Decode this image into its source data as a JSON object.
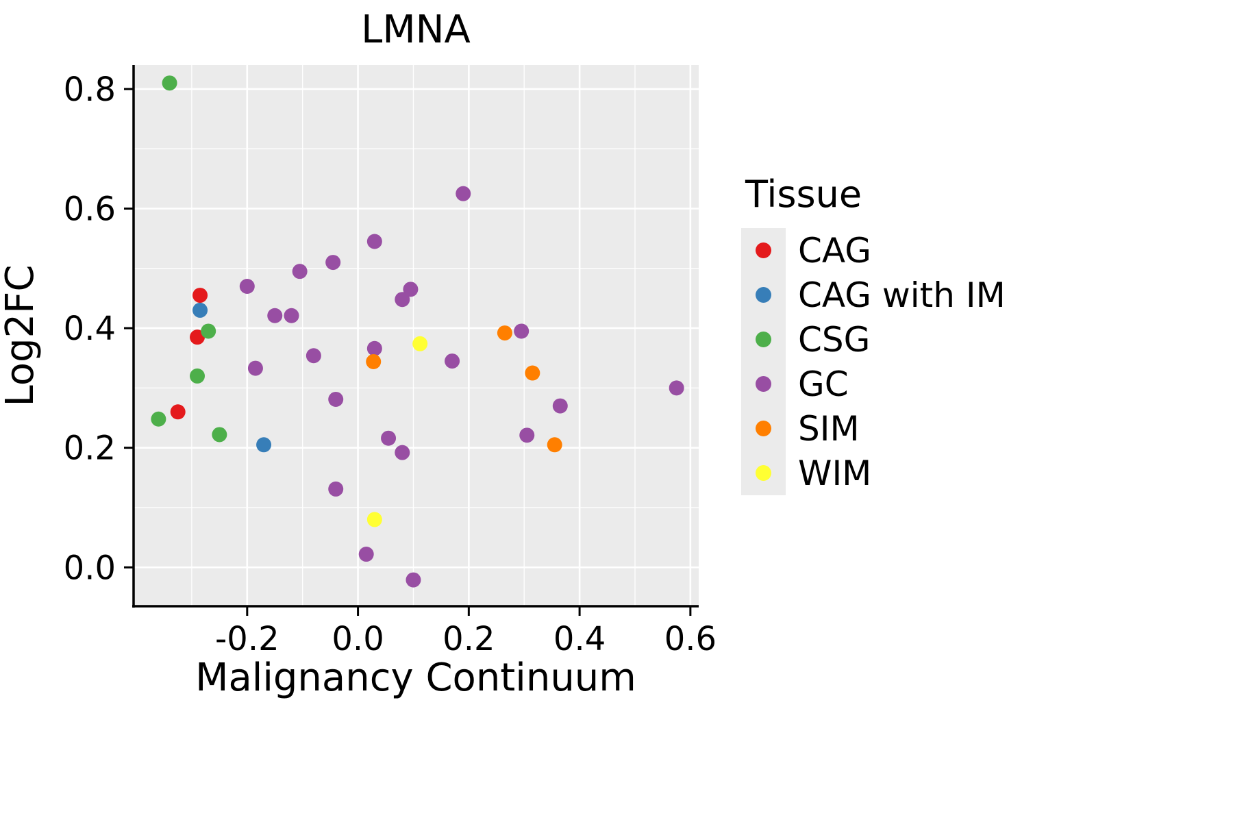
{
  "figure": {
    "background": "#FFFFFF"
  },
  "chart_data": {
    "type": "scatter",
    "title": "LMNA",
    "xlabel": "Malignancy Continuum",
    "ylabel": "Log2FC",
    "legend_title": "Tissue",
    "legend_position": "right",
    "panel_color": "#EBEBEB",
    "grid_color": "#FFFFFF",
    "axis_color": "#000000",
    "grid": true,
    "xlim": [
      -0.405,
      0.615
    ],
    "ylim": [
      -0.065,
      0.84
    ],
    "xticks": [
      -0.2,
      0.0,
      0.2,
      0.4,
      0.6
    ],
    "yticks": [
      0.0,
      0.2,
      0.4,
      0.6,
      0.8
    ],
    "x_minor_ticks": [
      -0.3,
      -0.1,
      0.1,
      0.3,
      0.5
    ],
    "y_minor_ticks": [
      0.1,
      0.3,
      0.5,
      0.7
    ],
    "point_radius": 11,
    "series": [
      {
        "name": "CAG",
        "color": "#E41A1C",
        "points": [
          [
            -0.285,
            0.455
          ],
          [
            -0.29,
            0.385
          ],
          [
            -0.325,
            0.26
          ]
        ]
      },
      {
        "name": "CAG with IM",
        "color": "#377EB8",
        "points": [
          [
            -0.285,
            0.43
          ],
          [
            -0.17,
            0.205
          ]
        ]
      },
      {
        "name": "CSG",
        "color": "#4DAF4A",
        "points": [
          [
            -0.34,
            0.81
          ],
          [
            -0.27,
            0.395
          ],
          [
            -0.29,
            0.32
          ],
          [
            -0.36,
            0.248
          ],
          [
            -0.25,
            0.222
          ]
        ]
      },
      {
        "name": "GC",
        "color": "#984EA3",
        "points": [
          [
            0.19,
            0.625
          ],
          [
            0.03,
            0.545
          ],
          [
            -0.045,
            0.51
          ],
          [
            -0.105,
            0.495
          ],
          [
            -0.2,
            0.47
          ],
          [
            0.095,
            0.465
          ],
          [
            0.08,
            0.448
          ],
          [
            -0.15,
            0.421
          ],
          [
            -0.12,
            0.421
          ],
          [
            0.295,
            0.395
          ],
          [
            0.03,
            0.366
          ],
          [
            -0.08,
            0.354
          ],
          [
            0.17,
            0.345
          ],
          [
            -0.185,
            0.333
          ],
          [
            0.575,
            0.3
          ],
          [
            -0.04,
            0.281
          ],
          [
            0.365,
            0.27
          ],
          [
            0.305,
            0.221
          ],
          [
            0.055,
            0.216
          ],
          [
            0.08,
            0.192
          ],
          [
            -0.04,
            0.131
          ],
          [
            0.015,
            0.022
          ],
          [
            0.1,
            -0.021
          ]
        ]
      },
      {
        "name": "SIM",
        "color": "#FF7F00",
        "points": [
          [
            0.265,
            0.392
          ],
          [
            0.028,
            0.344
          ],
          [
            0.315,
            0.325
          ],
          [
            0.355,
            0.205
          ]
        ]
      },
      {
        "name": "WIM",
        "color": "#FFFF33",
        "points": [
          [
            0.112,
            0.374
          ],
          [
            0.03,
            0.08
          ]
        ]
      }
    ]
  }
}
